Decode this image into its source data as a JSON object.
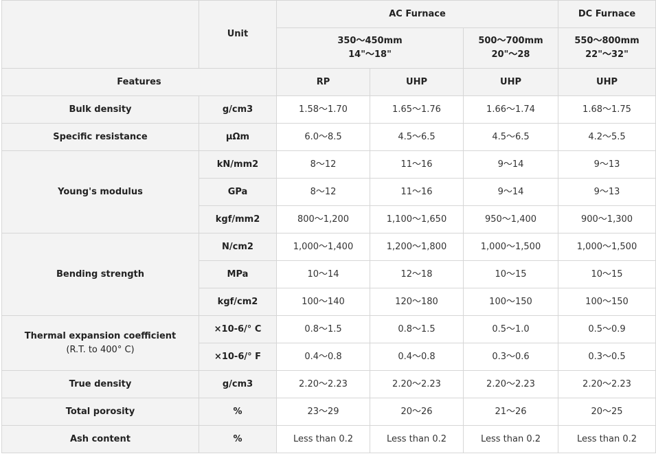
{
  "header": {
    "unit_label": "Unit",
    "ac_furnace": "AC Furnace",
    "dc_furnace": "DC Furnace",
    "size_ac1_line1": "350～450mm",
    "size_ac1_line2": "14\"～18\"",
    "size_ac2_line1": "500～700mm",
    "size_ac2_line2": "20\"～28",
    "size_dc_line1": "550～800mm",
    "size_dc_line2": "22\"～32\"",
    "features_label": "Features",
    "grades": [
      "RP",
      "UHP",
      "UHP",
      "UHP"
    ]
  },
  "rows": {
    "bulk_density": {
      "feature": "Bulk density",
      "unit": "g/cm3",
      "values": [
        "1.58～1.70",
        "1.65～1.76",
        "1.66～1.74",
        "1.68～1.75"
      ]
    },
    "specific_resistance": {
      "feature": "Specific resistance",
      "unit": "μΩm",
      "values": [
        "6.0～8.5",
        "4.5～6.5",
        "4.5～6.5",
        "4.2～5.5"
      ]
    },
    "youngs_modulus": {
      "feature": "Young's modulus",
      "sub": [
        {
          "unit": "kN/mm2",
          "values": [
            "8～12",
            "11～16",
            "9～14",
            "9～13"
          ]
        },
        {
          "unit": "GPa",
          "values": [
            "8～12",
            "11～16",
            "9～14",
            "9～13"
          ]
        },
        {
          "unit": "kgf/mm2",
          "values": [
            "800～1,200",
            "1,100～1,650",
            "950～1,400",
            "900～1,300"
          ]
        }
      ]
    },
    "bending_strength": {
      "feature": "Bending strength",
      "sub": [
        {
          "unit": "N/cm2",
          "values": [
            "1,000～1,400",
            "1,200～1,800",
            "1,000～1,500",
            "1,000～1,500"
          ]
        },
        {
          "unit": "MPa",
          "values": [
            "10～14",
            "12～18",
            "10～15",
            "10～15"
          ]
        },
        {
          "unit": "kgf/cm2",
          "values": [
            "100～140",
            "120～180",
            "100～150",
            "100～150"
          ]
        }
      ]
    },
    "thermal_expansion": {
      "feature_line1": "Thermal expansion coefficient",
      "feature_line2": "(R.T. to 400° C)",
      "sub": [
        {
          "unit": "×10-6/° C",
          "values": [
            "0.8～1.5",
            "0.8～1.5",
            "0.5～1.0",
            "0.5～0.9"
          ]
        },
        {
          "unit": "×10-6/° F",
          "values": [
            "0.4～0.8",
            "0.4～0.8",
            "0.3～0.6",
            "0.3～0.5"
          ]
        }
      ]
    },
    "true_density": {
      "feature": "True density",
      "unit": "g/cm3",
      "values": [
        "2.20～2.23",
        "2.20～2.23",
        "2.20～2.23",
        "2.20～2.23"
      ]
    },
    "total_porosity": {
      "feature": "Total porosity",
      "unit": "%",
      "values": [
        "23～29",
        "20～26",
        "21～26",
        "20～25"
      ]
    },
    "ash_content": {
      "feature": "Ash content",
      "unit": "%",
      "values": [
        "Less than 0.2",
        "Less than 0.2",
        "Less than 0.2",
        "Less than 0.2"
      ]
    }
  }
}
